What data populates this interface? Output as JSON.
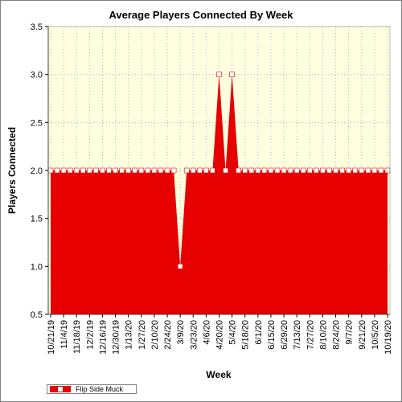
{
  "chart_data": {
    "type": "area",
    "title": "Average Players Connected By Week",
    "xlabel": "Week",
    "ylabel": "Players Connected",
    "ylim": [
      0.5,
      3.5
    ],
    "yticks": [
      "0.5",
      "1.0",
      "1.5",
      "2.0",
      "2.5",
      "3.0",
      "3.5"
    ],
    "x_tick_labels": [
      "10/21/19",
      "11/4/19",
      "11/18/19",
      "12/2/19",
      "12/16/19",
      "12/30/19",
      "1/13/20",
      "1/27/20",
      "2/10/20",
      "2/24/20",
      "3/9/20",
      "3/23/20",
      "4/6/20",
      "4/20/20",
      "5/4/20",
      "5/18/20",
      "6/1/20",
      "6/15/20",
      "6/29/20",
      "7/13/20",
      "7/27/20",
      "8/10/20",
      "8/24/20",
      "9/7/20",
      "9/21/20",
      "10/5/20",
      "10/19/20"
    ],
    "grid": true,
    "legend_position": "bottom-left",
    "colors": {
      "series": "#e60000",
      "plot_background": "#ffffe0",
      "marker_fill": "#ffffff",
      "grid": "#b4b4b4"
    },
    "series": [
      {
        "name": "Flip Side Muck",
        "x": [
          "10/21/19",
          "10/28/19",
          "11/4/19",
          "11/11/19",
          "11/18/19",
          "11/25/19",
          "12/2/19",
          "12/9/19",
          "12/16/19",
          "12/23/19",
          "12/30/19",
          "1/6/20",
          "1/13/20",
          "1/20/20",
          "1/27/20",
          "2/3/20",
          "2/10/20",
          "2/17/20",
          "2/24/20",
          "3/2/20",
          "3/9/20",
          "3/16/20",
          "3/23/20",
          "3/30/20",
          "4/6/20",
          "4/13/20",
          "4/20/20",
          "4/27/20",
          "5/4/20",
          "5/11/20",
          "5/18/20",
          "5/25/20",
          "6/1/20",
          "6/8/20",
          "6/15/20",
          "6/22/20",
          "6/29/20",
          "7/6/20",
          "7/13/20",
          "7/20/20",
          "7/27/20",
          "8/3/20",
          "8/10/20",
          "8/17/20",
          "8/24/20",
          "8/31/20",
          "9/7/20",
          "9/14/20",
          "9/21/20",
          "9/28/20",
          "10/5/20",
          "10/12/20",
          "10/19/20"
        ],
        "values": [
          2,
          2,
          2,
          2,
          2,
          2,
          2,
          2,
          2,
          2,
          2,
          2,
          2,
          2,
          2,
          2,
          2,
          2,
          2,
          2,
          1,
          2,
          2,
          2,
          2,
          2,
          3,
          2,
          3,
          2,
          2,
          2,
          2,
          2,
          2,
          2,
          2,
          2,
          2,
          2,
          2,
          2,
          2,
          2,
          2,
          2,
          2,
          2,
          2,
          2,
          2,
          2,
          2
        ]
      }
    ]
  }
}
